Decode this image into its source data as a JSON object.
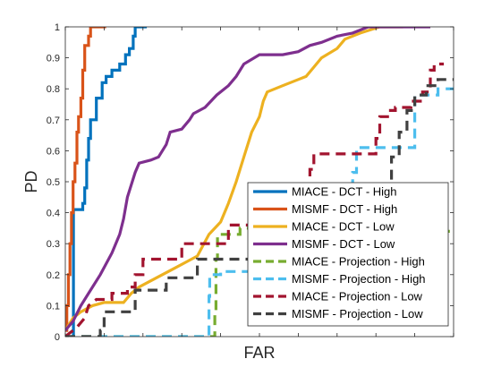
{
  "chart_data": {
    "type": "line",
    "title": "",
    "xlabel": "FAR",
    "ylabel": "PD",
    "ylim": [
      0,
      1
    ],
    "xlim": [
      0,
      1
    ],
    "yticks": [
      "0",
      "0.1",
      "0.2",
      "0.3",
      "0.4",
      "0.5",
      "0.6",
      "0.7",
      "0.8",
      "0.9",
      "1"
    ],
    "x_tick_labels_shown": false,
    "grid": false,
    "legend_placement": "bottom-right",
    "series": [
      {
        "name": "MIACE - DCT - High",
        "color": "#0072BD",
        "dash": "solid",
        "points": [
          [
            0.018,
            0
          ],
          [
            0.021,
            0
          ],
          [
            0.021,
            0.41
          ],
          [
            0.045,
            0.41
          ],
          [
            0.045,
            0.43
          ],
          [
            0.05,
            0.43
          ],
          [
            0.05,
            0.48
          ],
          [
            0.055,
            0.48
          ],
          [
            0.055,
            0.57
          ],
          [
            0.06,
            0.57
          ],
          [
            0.06,
            0.64
          ],
          [
            0.065,
            0.64
          ],
          [
            0.065,
            0.7
          ],
          [
            0.08,
            0.7
          ],
          [
            0.08,
            0.77
          ],
          [
            0.095,
            0.77
          ],
          [
            0.095,
            0.82
          ],
          [
            0.105,
            0.82
          ],
          [
            0.105,
            0.84
          ],
          [
            0.12,
            0.84
          ],
          [
            0.12,
            0.86
          ],
          [
            0.14,
            0.86
          ],
          [
            0.14,
            0.88
          ],
          [
            0.155,
            0.88
          ],
          [
            0.155,
            0.91
          ],
          [
            0.165,
            0.91
          ],
          [
            0.165,
            0.93
          ],
          [
            0.175,
            0.93
          ],
          [
            0.175,
            0.97
          ],
          [
            0.18,
            0.97
          ],
          [
            0.18,
            1.0
          ],
          [
            0.21,
            1.0
          ]
        ]
      },
      {
        "name": "MISMF - DCT - High",
        "color": "#D95319",
        "dash": "solid",
        "points": [
          [
            0.0,
            0.02
          ],
          [
            0.004,
            0.02
          ],
          [
            0.004,
            0.1
          ],
          [
            0.008,
            0.1
          ],
          [
            0.008,
            0.2
          ],
          [
            0.012,
            0.2
          ],
          [
            0.012,
            0.3
          ],
          [
            0.016,
            0.3
          ],
          [
            0.016,
            0.4
          ],
          [
            0.02,
            0.4
          ],
          [
            0.02,
            0.5
          ],
          [
            0.025,
            0.5
          ],
          [
            0.025,
            0.56
          ],
          [
            0.03,
            0.56
          ],
          [
            0.03,
            0.66
          ],
          [
            0.034,
            0.66
          ],
          [
            0.034,
            0.71
          ],
          [
            0.04,
            0.71
          ],
          [
            0.04,
            0.77
          ],
          [
            0.045,
            0.77
          ],
          [
            0.045,
            0.86
          ],
          [
            0.05,
            0.86
          ],
          [
            0.05,
            0.94
          ],
          [
            0.06,
            0.94
          ],
          [
            0.06,
            0.97
          ],
          [
            0.065,
            0.97
          ],
          [
            0.065,
            1.0
          ],
          [
            0.105,
            1.0
          ]
        ]
      },
      {
        "name": "MIACE - DCT - Low",
        "color": "#EDB120",
        "dash": "solid",
        "points": [
          [
            0.0,
            0.02
          ],
          [
            0.02,
            0.06
          ],
          [
            0.04,
            0.08
          ],
          [
            0.07,
            0.1
          ],
          [
            0.1,
            0.11
          ],
          [
            0.15,
            0.11
          ],
          [
            0.17,
            0.14
          ],
          [
            0.19,
            0.16
          ],
          [
            0.22,
            0.18
          ],
          [
            0.25,
            0.2
          ],
          [
            0.28,
            0.22
          ],
          [
            0.31,
            0.24
          ],
          [
            0.34,
            0.26
          ],
          [
            0.37,
            0.33
          ],
          [
            0.4,
            0.37
          ],
          [
            0.42,
            0.43
          ],
          [
            0.44,
            0.5
          ],
          [
            0.46,
            0.58
          ],
          [
            0.48,
            0.66
          ],
          [
            0.5,
            0.71
          ],
          [
            0.51,
            0.76
          ],
          [
            0.52,
            0.79
          ],
          [
            0.56,
            0.81
          ],
          [
            0.6,
            0.83
          ],
          [
            0.62,
            0.84
          ],
          [
            0.64,
            0.87
          ],
          [
            0.66,
            0.9
          ],
          [
            0.7,
            0.93
          ],
          [
            0.72,
            0.96
          ],
          [
            0.76,
            0.98
          ],
          [
            0.81,
            1.0
          ],
          [
            0.87,
            1.0
          ]
        ]
      },
      {
        "name": "MISMF - DCT - Low",
        "color": "#7E2F8E",
        "dash": "solid",
        "points": [
          [
            0.0,
            0.02
          ],
          [
            0.02,
            0.05
          ],
          [
            0.04,
            0.1
          ],
          [
            0.06,
            0.14
          ],
          [
            0.09,
            0.2
          ],
          [
            0.12,
            0.27
          ],
          [
            0.14,
            0.33
          ],
          [
            0.15,
            0.38
          ],
          [
            0.16,
            0.45
          ],
          [
            0.18,
            0.53
          ],
          [
            0.19,
            0.56
          ],
          [
            0.22,
            0.57
          ],
          [
            0.24,
            0.58
          ],
          [
            0.26,
            0.62
          ],
          [
            0.27,
            0.66
          ],
          [
            0.3,
            0.67
          ],
          [
            0.32,
            0.7
          ],
          [
            0.33,
            0.72
          ],
          [
            0.36,
            0.74
          ],
          [
            0.39,
            0.78
          ],
          [
            0.42,
            0.81
          ],
          [
            0.44,
            0.84
          ],
          [
            0.46,
            0.88
          ],
          [
            0.5,
            0.91
          ],
          [
            0.56,
            0.91
          ],
          [
            0.6,
            0.92
          ],
          [
            0.63,
            0.94
          ],
          [
            0.66,
            0.95
          ],
          [
            0.7,
            0.97
          ],
          [
            0.74,
            0.98
          ],
          [
            0.78,
            1.0
          ],
          [
            0.94,
            1.0
          ]
        ]
      },
      {
        "name": "MIACE - Projection - High",
        "color": "#77AC30",
        "dash": "dashed",
        "points": [
          [
            0.0,
            0
          ],
          [
            0.385,
            0
          ],
          [
            0.385,
            0.08
          ],
          [
            0.388,
            0.08
          ],
          [
            0.388,
            0.25
          ],
          [
            0.392,
            0.25
          ],
          [
            0.392,
            0.33
          ],
          [
            0.45,
            0.33
          ],
          [
            0.45,
            0.35
          ],
          [
            0.6,
            0.35
          ],
          [
            0.8,
            0.34
          ],
          [
            1.0,
            0.34
          ]
        ]
      },
      {
        "name": "MISMF - Projection - High",
        "color": "#4DBEEE",
        "dash": "dashed",
        "points": [
          [
            0.0,
            0
          ],
          [
            0.37,
            0
          ],
          [
            0.37,
            0.13
          ],
          [
            0.372,
            0.13
          ],
          [
            0.372,
            0.2
          ],
          [
            0.4,
            0.2
          ],
          [
            0.4,
            0.21
          ],
          [
            0.74,
            0.21
          ],
          [
            0.74,
            0.53
          ],
          [
            0.75,
            0.53
          ],
          [
            0.75,
            0.61
          ],
          [
            0.9,
            0.61
          ],
          [
            0.9,
            0.78
          ],
          [
            0.96,
            0.78
          ],
          [
            0.96,
            0.8
          ],
          [
            1.0,
            0.8
          ]
        ]
      },
      {
        "name": "MIACE - Projection - Low",
        "color": "#A2142F",
        "dash": "dashed",
        "points": [
          [
            0.0,
            0
          ],
          [
            0.01,
            0.01
          ],
          [
            0.03,
            0.03
          ],
          [
            0.05,
            0.06
          ],
          [
            0.06,
            0.1
          ],
          [
            0.08,
            0.12
          ],
          [
            0.12,
            0.12
          ],
          [
            0.12,
            0.14
          ],
          [
            0.16,
            0.14
          ],
          [
            0.16,
            0.16
          ],
          [
            0.18,
            0.16
          ],
          [
            0.18,
            0.2
          ],
          [
            0.2,
            0.2
          ],
          [
            0.2,
            0.25
          ],
          [
            0.3,
            0.25
          ],
          [
            0.3,
            0.3
          ],
          [
            0.42,
            0.3
          ],
          [
            0.42,
            0.36
          ],
          [
            0.6,
            0.36
          ],
          [
            0.6,
            0.44
          ],
          [
            0.63,
            0.44
          ],
          [
            0.63,
            0.54
          ],
          [
            0.64,
            0.54
          ],
          [
            0.64,
            0.59
          ],
          [
            0.8,
            0.59
          ],
          [
            0.8,
            0.64
          ],
          [
            0.81,
            0.64
          ],
          [
            0.81,
            0.71
          ],
          [
            0.83,
            0.71
          ],
          [
            0.83,
            0.73
          ],
          [
            0.85,
            0.73
          ],
          [
            0.85,
            0.74
          ],
          [
            0.89,
            0.74
          ],
          [
            0.89,
            0.76
          ],
          [
            0.92,
            0.76
          ],
          [
            0.92,
            0.79
          ],
          [
            0.94,
            0.79
          ],
          [
            0.94,
            0.86
          ],
          [
            0.95,
            0.86
          ],
          [
            0.95,
            0.88
          ],
          [
            0.975,
            0.88
          ]
        ]
      },
      {
        "name": "MISMF - Projection - Low",
        "color": "#404040",
        "dash": "dashed",
        "points": [
          [
            0.0,
            0
          ],
          [
            0.09,
            0
          ],
          [
            0.09,
            0.02
          ],
          [
            0.1,
            0.02
          ],
          [
            0.1,
            0.08
          ],
          [
            0.18,
            0.08
          ],
          [
            0.18,
            0.15
          ],
          [
            0.26,
            0.15
          ],
          [
            0.26,
            0.19
          ],
          [
            0.34,
            0.19
          ],
          [
            0.34,
            0.25
          ],
          [
            0.55,
            0.25
          ],
          [
            0.55,
            0.45
          ],
          [
            0.84,
            0.45
          ],
          [
            0.84,
            0.58
          ],
          [
            0.86,
            0.58
          ],
          [
            0.86,
            0.66
          ],
          [
            0.88,
            0.66
          ],
          [
            0.88,
            0.73
          ],
          [
            0.9,
            0.73
          ],
          [
            0.9,
            0.78
          ],
          [
            0.93,
            0.78
          ],
          [
            0.93,
            0.81
          ],
          [
            0.96,
            0.81
          ],
          [
            0.96,
            0.83
          ],
          [
            1.0,
            0.83
          ]
        ]
      }
    ]
  }
}
